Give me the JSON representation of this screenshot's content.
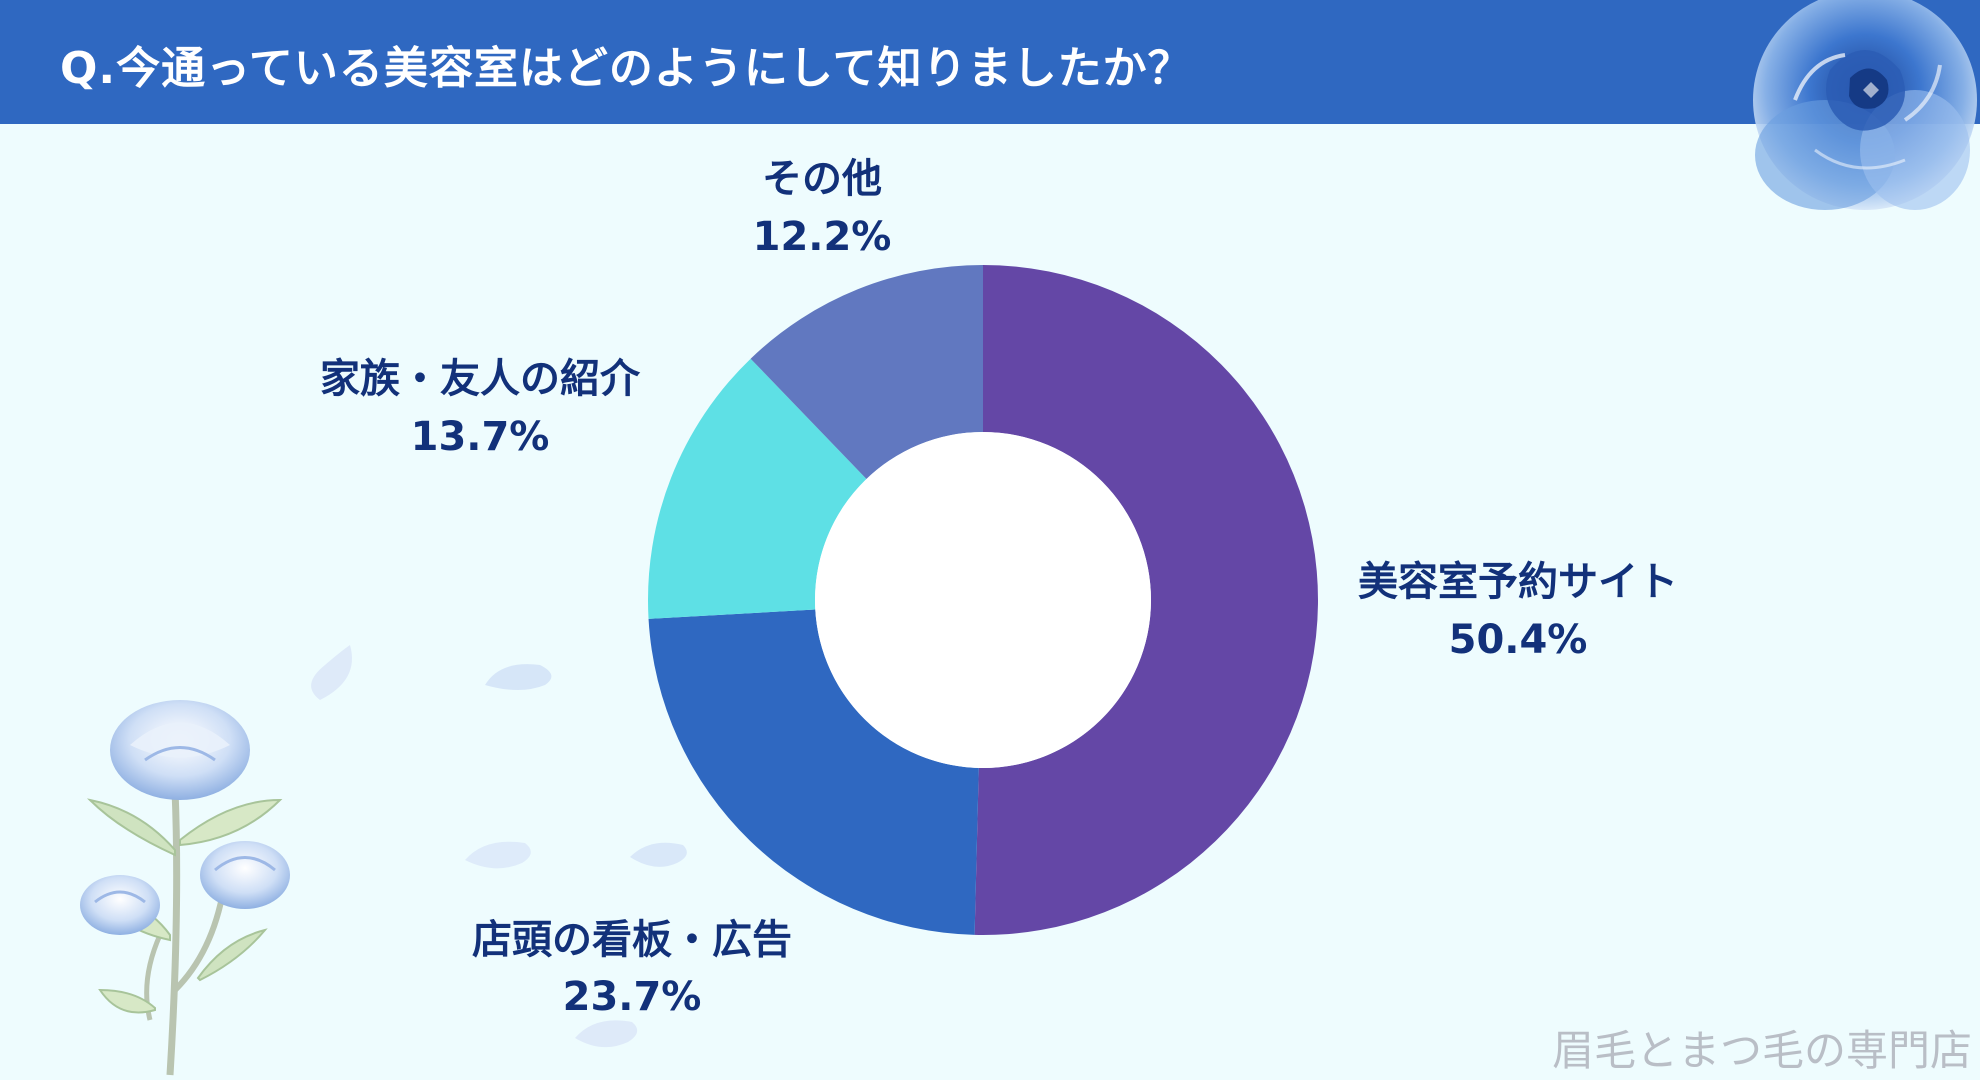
{
  "header": {
    "title": "Q.今通っている美容室はどのようにして知りましたか？"
  },
  "chart_data": {
    "type": "donut",
    "title": "Q.今通っている美容室はどのようにして知りましたか？",
    "unit": "%",
    "slices": [
      {
        "label": "美容室予約サイト",
        "value": 50.4,
        "display": "50.4%",
        "color": "#6447a6"
      },
      {
        "label": "店頭の看板・広告",
        "value": 23.7,
        "display": "23.7%",
        "color": "#2f68c1"
      },
      {
        "label": "家族・友人の紹介",
        "value": 13.7,
        "display": "13.7%",
        "color": "#5ee0e5"
      },
      {
        "label": "その他",
        "value": 12.2,
        "display": "12.2%",
        "color": "#6178c0"
      }
    ]
  },
  "colors": {
    "header": "#2f68c1",
    "background": "#eefcfe",
    "label_text": "#12317a",
    "donut_hole": "#ffffff"
  },
  "decoration": {
    "rose_icon": "blue-rose-icon",
    "flower_icon": "rose-branch-icon",
    "petal_icon": "petal-icon"
  },
  "watermark": "眉毛とまつ毛の専門店"
}
